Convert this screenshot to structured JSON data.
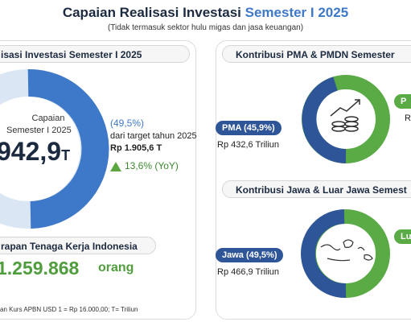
{
  "header": {
    "title": "Capaian Realisasi Investasi",
    "title_highlight": "Semester I 2025",
    "subtitle": "(Tidak termasuk sektor hulu migas dan jasa keuangan)"
  },
  "left": {
    "heading": "isasi Investasi Semester I 2025",
    "donut_label_1": "Capaian",
    "donut_label_2": "Semester I 2025",
    "donut_value": "942,9",
    "donut_unit": "T",
    "percent": "(49,5%)",
    "target_text": "dari target tahun 2025",
    "target_value": "Rp 1.905,6 T",
    "yoy": "13,6% (YoY)",
    "jobs_heading": "rapan Tenaga Kerja Indonesia",
    "jobs_value": "1.259.868",
    "jobs_unit": "orang",
    "footnote": "an Kurs APBN USD 1 = Rp 16.000,00; T= Triliun"
  },
  "right": {
    "pma_heading": "Kontribusi PMA & PMDN Semester",
    "pma_tag": "PMA (45,9%)",
    "pma_value": "Rp 432,6 Triliun",
    "pmdn_tag": "P",
    "pmdn_value": "R",
    "jawa_heading": "Kontribusi Jawa & Luar Jawa Semest",
    "jawa_tag": "Jawa (49,5%)",
    "jawa_value": "Rp 466,9 Triliun",
    "luar_tag": "Lu"
  }
}
